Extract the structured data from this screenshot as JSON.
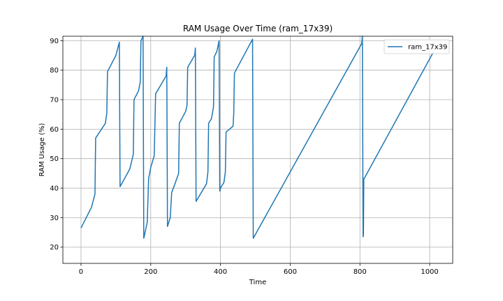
{
  "chart_data": {
    "type": "line",
    "title": "RAM Usage Over Time (ram_17x39)",
    "xlabel": "Time",
    "ylabel": "RAM Usage (%)",
    "xlim": [
      -52,
      1066
    ],
    "ylim": [
      14.5,
      91.5
    ],
    "xticks": [
      0,
      200,
      400,
      600,
      800,
      1000
    ],
    "yticks": [
      20,
      30,
      40,
      50,
      60,
      70,
      80,
      90
    ],
    "grid": true,
    "legend_position": "top-right",
    "series": [
      {
        "name": "ram_17x39",
        "color": "#1f77b4",
        "x": [
          0,
          30,
          40,
          42,
          70,
          74,
          76,
          100,
          110,
          112,
          140,
          150,
          152,
          165,
          170,
          172,
          178,
          180,
          182,
          190,
          194,
          196,
          200,
          210,
          214,
          244,
          246,
          248,
          256,
          260,
          268,
          280,
          282,
          300,
          304,
          306,
          326,
          328,
          330,
          360,
          364,
          366,
          374,
          380,
          382,
          390,
          396,
          398,
          400,
          410,
          414,
          416,
          436,
          438,
          440,
          492,
          494,
          805,
          807,
          809,
          810,
          811,
          1010
        ],
        "y": [
          26.5,
          33.5,
          38,
          57,
          62,
          65.5,
          79.5,
          85,
          89.5,
          40.5,
          46.5,
          51.5,
          70,
          73,
          76,
          90,
          91.5,
          23,
          24,
          28.5,
          43.5,
          44.5,
          47,
          51,
          72,
          78,
          81,
          27,
          30,
          38.5,
          41,
          45,
          62,
          66,
          68,
          81,
          85,
          87.5,
          35.5,
          41.5,
          45.5,
          62,
          63.5,
          67.5,
          84.5,
          86.5,
          90,
          39,
          40,
          42,
          45.5,
          59,
          61,
          65,
          79,
          90.5,
          23,
          89,
          91.5,
          23.5,
          24.5,
          43,
          86
        ]
      }
    ]
  }
}
